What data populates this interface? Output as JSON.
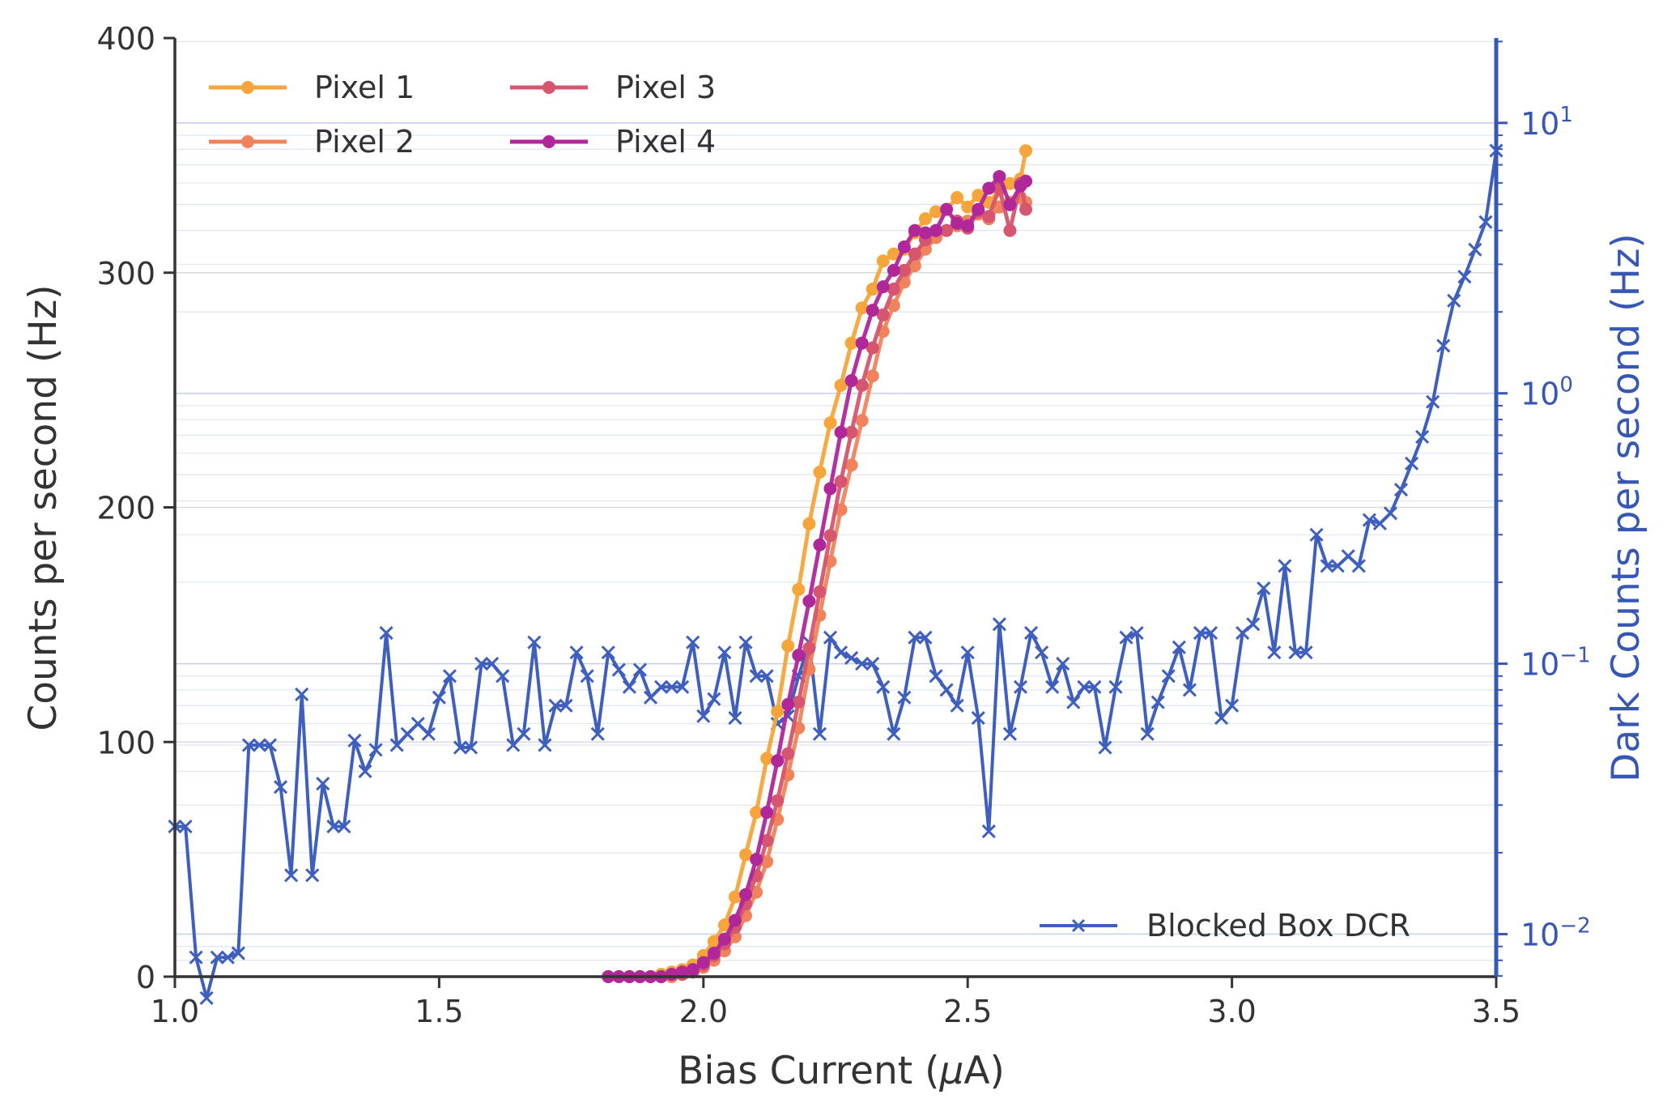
{
  "chart_data": {
    "type": "line",
    "xlabel": "Bias Current (μA)",
    "xlabel_prefix": "Bias Current (",
    "xlabel_mu": "μ",
    "xlabel_suffix": "A)",
    "ylabel_left": "Counts per second (Hz)",
    "ylabel_right": "Dark Counts per second (Hz)",
    "xlim": [
      1.0,
      3.5
    ],
    "ylim_left": [
      0,
      400
    ],
    "ylim_right": [
      0.00696,
      20.6
    ],
    "y_right_scale": "log",
    "x_ticks": [
      "1.0",
      "1.5",
      "2.0",
      "2.5",
      "3.0",
      "3.5"
    ],
    "y_left_ticks": [
      "0",
      "100",
      "200",
      "300",
      "400"
    ],
    "y_right_ticks": [
      {
        "base": "10",
        "exp": "−2",
        "value": 0.01
      },
      {
        "base": "10",
        "exp": "−1",
        "value": 0.1
      },
      {
        "base": "10",
        "exp": "0",
        "value": 1
      },
      {
        "base": "10",
        "exp": "1",
        "value": 10
      }
    ],
    "grid": "horizontal",
    "legend_left": {
      "placement": "top-left",
      "entries": [
        "Pixel 1",
        "Pixel 2",
        "Pixel 3",
        "Pixel 4"
      ]
    },
    "legend_right": {
      "placement": "bottom-right",
      "entries": [
        "Blocked Box DCR"
      ]
    },
    "colors": {
      "pixel1": "#f5a53a",
      "pixel2": "#ef845c",
      "pixel3": "#d5566e",
      "pixel4": "#b0279a",
      "dcr": "#3f5fbf",
      "axis_right": "#3657b4",
      "text": "#333333"
    },
    "pixel_series": [
      {
        "name": "Pixel 1",
        "color": "#f5a53a",
        "x": [
          1.82,
          1.84,
          1.86,
          1.88,
          1.9,
          1.92,
          1.94,
          1.96,
          1.98,
          2.0,
          2.02,
          2.04,
          2.06,
          2.08,
          2.1,
          2.12,
          2.14,
          2.16,
          2.18,
          2.2,
          2.22,
          2.24,
          2.26,
          2.28,
          2.3,
          2.32,
          2.34,
          2.36,
          2.38,
          2.4,
          2.42,
          2.44,
          2.46,
          2.48,
          2.5,
          2.52,
          2.54,
          2.56,
          2.58,
          2.6,
          2.61
        ],
        "y": [
          0,
          0,
          0,
          0,
          0,
          1,
          2,
          3,
          5,
          9,
          15,
          22,
          34,
          52,
          70,
          93,
          113,
          141,
          165,
          193,
          215,
          236,
          252,
          270,
          285,
          293,
          305,
          308,
          310,
          317,
          323,
          326,
          327,
          332,
          328,
          333,
          330,
          335,
          338,
          340,
          352
        ]
      },
      {
        "name": "Pixel 2",
        "color": "#ef845c",
        "x": [
          1.82,
          1.84,
          1.86,
          1.88,
          1.9,
          1.92,
          1.94,
          1.96,
          1.98,
          2.0,
          2.02,
          2.04,
          2.06,
          2.08,
          2.1,
          2.12,
          2.14,
          2.16,
          2.18,
          2.2,
          2.22,
          2.24,
          2.26,
          2.28,
          2.3,
          2.32,
          2.34,
          2.36,
          2.38,
          2.4,
          2.42,
          2.44,
          2.46,
          2.48,
          2.5,
          2.52,
          2.54,
          2.56,
          2.58,
          2.6,
          2.61
        ],
        "y": [
          0,
          0,
          0,
          0,
          0,
          0,
          0,
          1,
          2,
          4,
          7,
          11,
          17,
          26,
          36,
          49,
          67,
          86,
          106,
          131,
          154,
          177,
          199,
          218,
          237,
          256,
          275,
          286,
          296,
          303,
          310,
          315,
          318,
          320,
          322,
          325,
          323,
          328,
          330,
          332,
          330
        ]
      },
      {
        "name": "Pixel 3",
        "color": "#d5566e",
        "x": [
          1.82,
          1.84,
          1.86,
          1.88,
          1.9,
          1.92,
          1.94,
          1.96,
          1.98,
          2.0,
          2.02,
          2.04,
          2.06,
          2.08,
          2.1,
          2.12,
          2.14,
          2.16,
          2.18,
          2.2,
          2.22,
          2.24,
          2.26,
          2.28,
          2.3,
          2.32,
          2.34,
          2.36,
          2.38,
          2.4,
          2.42,
          2.44,
          2.46,
          2.48,
          2.5,
          2.52,
          2.54,
          2.56,
          2.58,
          2.6,
          2.61
        ],
        "y": [
          0,
          0,
          0,
          0,
          0,
          0,
          1,
          1,
          2,
          5,
          9,
          14,
          21,
          31,
          43,
          58,
          75,
          95,
          117,
          140,
          164,
          188,
          211,
          232,
          252,
          268,
          282,
          293,
          301,
          308,
          314,
          318,
          318,
          322,
          319,
          326,
          324,
          336,
          318,
          338,
          327
        ]
      },
      {
        "name": "Pixel 4",
        "color": "#b0279a",
        "x": [
          1.82,
          1.84,
          1.86,
          1.88,
          1.9,
          1.92,
          1.94,
          1.96,
          1.98,
          2.0,
          2.02,
          2.04,
          2.06,
          2.08,
          2.1,
          2.12,
          2.14,
          2.16,
          2.18,
          2.2,
          2.22,
          2.24,
          2.26,
          2.28,
          2.3,
          2.32,
          2.34,
          2.36,
          2.38,
          2.4,
          2.42,
          2.44,
          2.46,
          2.48,
          2.5,
          2.52,
          2.54,
          2.56,
          2.58,
          2.6,
          2.61
        ],
        "y": [
          0,
          0,
          0,
          0,
          0,
          0,
          1,
          2,
          3,
          6,
          10,
          16,
          24,
          35,
          50,
          70,
          92,
          116,
          137,
          160,
          184,
          208,
          232,
          254,
          270,
          284,
          294,
          301,
          311,
          318,
          317,
          318,
          327,
          321,
          320,
          327,
          336,
          341,
          329,
          337,
          339
        ]
      }
    ],
    "dcr_series": {
      "name": "Blocked Box DCR",
      "color": "#3f5fbf",
      "x": [
        1.0,
        1.02,
        1.04,
        1.06,
        1.08,
        1.1,
        1.12,
        1.14,
        1.16,
        1.18,
        1.2,
        1.22,
        1.24,
        1.26,
        1.28,
        1.3,
        1.32,
        1.34,
        1.36,
        1.38,
        1.4,
        1.42,
        1.44,
        1.46,
        1.48,
        1.5,
        1.52,
        1.54,
        1.56,
        1.58,
        1.6,
        1.62,
        1.64,
        1.66,
        1.68,
        1.7,
        1.72,
        1.74,
        1.76,
        1.78,
        1.8,
        1.82,
        1.84,
        1.86,
        1.88,
        1.9,
        1.92,
        1.94,
        1.96,
        1.98,
        2.0,
        2.02,
        2.04,
        2.06,
        2.08,
        2.1,
        2.12,
        2.14,
        2.16,
        2.18,
        2.2,
        2.22,
        2.24,
        2.26,
        2.28,
        2.3,
        2.32,
        2.34,
        2.36,
        2.38,
        2.4,
        2.42,
        2.44,
        2.46,
        2.48,
        2.5,
        2.52,
        2.54,
        2.56,
        2.58,
        2.6,
        2.62,
        2.64,
        2.66,
        2.68,
        2.7,
        2.72,
        2.74,
        2.76,
        2.78,
        2.8,
        2.82,
        2.84,
        2.86,
        2.88,
        2.9,
        2.92,
        2.94,
        2.96,
        2.98,
        3.0,
        3.02,
        3.04,
        3.06,
        3.08,
        3.1,
        3.12,
        3.14,
        3.16,
        3.18,
        3.2,
        3.22,
        3.24,
        3.26,
        3.28,
        3.3,
        3.32,
        3.34,
        3.36,
        3.38,
        3.4,
        3.42,
        3.44,
        3.46,
        3.48,
        3.5
      ],
      "y": [
        0.025,
        0.025,
        0.0082,
        0.0058,
        0.0082,
        0.0082,
        0.0085,
        0.05,
        0.05,
        0.05,
        0.035,
        0.0165,
        0.077,
        0.0165,
        0.036,
        0.025,
        0.025,
        0.052,
        0.04,
        0.048,
        0.13,
        0.05,
        0.055,
        0.06,
        0.055,
        0.075,
        0.09,
        0.049,
        0.049,
        0.1,
        0.1,
        0.09,
        0.05,
        0.055,
        0.12,
        0.05,
        0.07,
        0.07,
        0.11,
        0.09,
        0.055,
        0.11,
        0.095,
        0.082,
        0.095,
        0.075,
        0.082,
        0.082,
        0.082,
        0.12,
        0.064,
        0.074,
        0.11,
        0.063,
        0.12,
        0.09,
        0.09,
        0.06,
        0.064,
        0.09,
        0.12,
        0.055,
        0.125,
        0.11,
        0.105,
        0.1,
        0.1,
        0.082,
        0.055,
        0.075,
        0.125,
        0.125,
        0.09,
        0.08,
        0.07,
        0.11,
        0.063,
        0.024,
        0.14,
        0.055,
        0.082,
        0.13,
        0.11,
        0.082,
        0.1,
        0.072,
        0.082,
        0.082,
        0.049,
        0.082,
        0.125,
        0.13,
        0.055,
        0.072,
        0.09,
        0.115,
        0.08,
        0.13,
        0.13,
        0.063,
        0.07,
        0.13,
        0.14,
        0.19,
        0.11,
        0.23,
        0.11,
        0.11,
        0.3,
        0.23,
        0.23,
        0.25,
        0.23,
        0.34,
        0.33,
        0.36,
        0.44,
        0.55,
        0.69,
        0.93,
        1.5,
        2.2,
        2.7,
        3.4,
        4.3,
        7.9
      ]
    }
  }
}
